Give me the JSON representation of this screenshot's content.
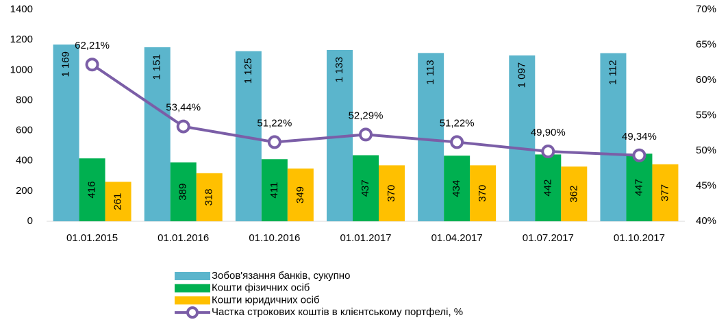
{
  "chart_data": {
    "type": "bar-line",
    "categories": [
      "01.01.2015",
      "01.01.2016",
      "01.10.2016",
      "01.01.2017",
      "01.04.2017",
      "01.07.2017",
      "01.10.2017"
    ],
    "series": [
      {
        "name": "Зобов'язання банків, сукупно",
        "type": "bar",
        "color": "#5bb5cc",
        "values": [
          1169,
          1151,
          1125,
          1133,
          1113,
          1097,
          1112
        ],
        "value_labels": [
          "1 169",
          "1 151",
          "1 125",
          "1 133",
          "1 113",
          "1 097",
          "1 112"
        ]
      },
      {
        "name": "Кошти фізичних осіб",
        "type": "bar",
        "color": "#00b050",
        "values": [
          416,
          389,
          411,
          437,
          434,
          442,
          447
        ]
      },
      {
        "name": "Кошти юридичних осіб",
        "type": "bar",
        "color": "#ffc000",
        "values": [
          261,
          318,
          349,
          370,
          370,
          362,
          377
        ]
      },
      {
        "name": "Частка строкових коштів в клієнтському портфелі, %",
        "type": "line",
        "axis": "y2",
        "color": "#7b5ea7",
        "values": [
          62.21,
          53.44,
          51.22,
          52.29,
          51.22,
          49.9,
          49.34
        ],
        "value_labels": [
          "62,21%",
          "53,44%",
          "51,22%",
          "52,29%",
          "51,22%",
          "49,90%",
          "49,34%"
        ]
      }
    ],
    "ylim": [
      0,
      1400
    ],
    "yticks": [
      0,
      200,
      400,
      600,
      800,
      1000,
      1200,
      1400
    ],
    "y2lim": [
      40,
      70
    ],
    "y2ticks": [
      {
        "value": 40,
        "label": "40%"
      },
      {
        "value": 45,
        "label": "45%"
      },
      {
        "value": 50,
        "label": "50%"
      },
      {
        "value": 55,
        "label": "55%"
      },
      {
        "value": 60,
        "label": "60%"
      },
      {
        "value": 65,
        "label": "65%"
      },
      {
        "value": 70,
        "label": "70%"
      }
    ],
    "grid": false
  }
}
